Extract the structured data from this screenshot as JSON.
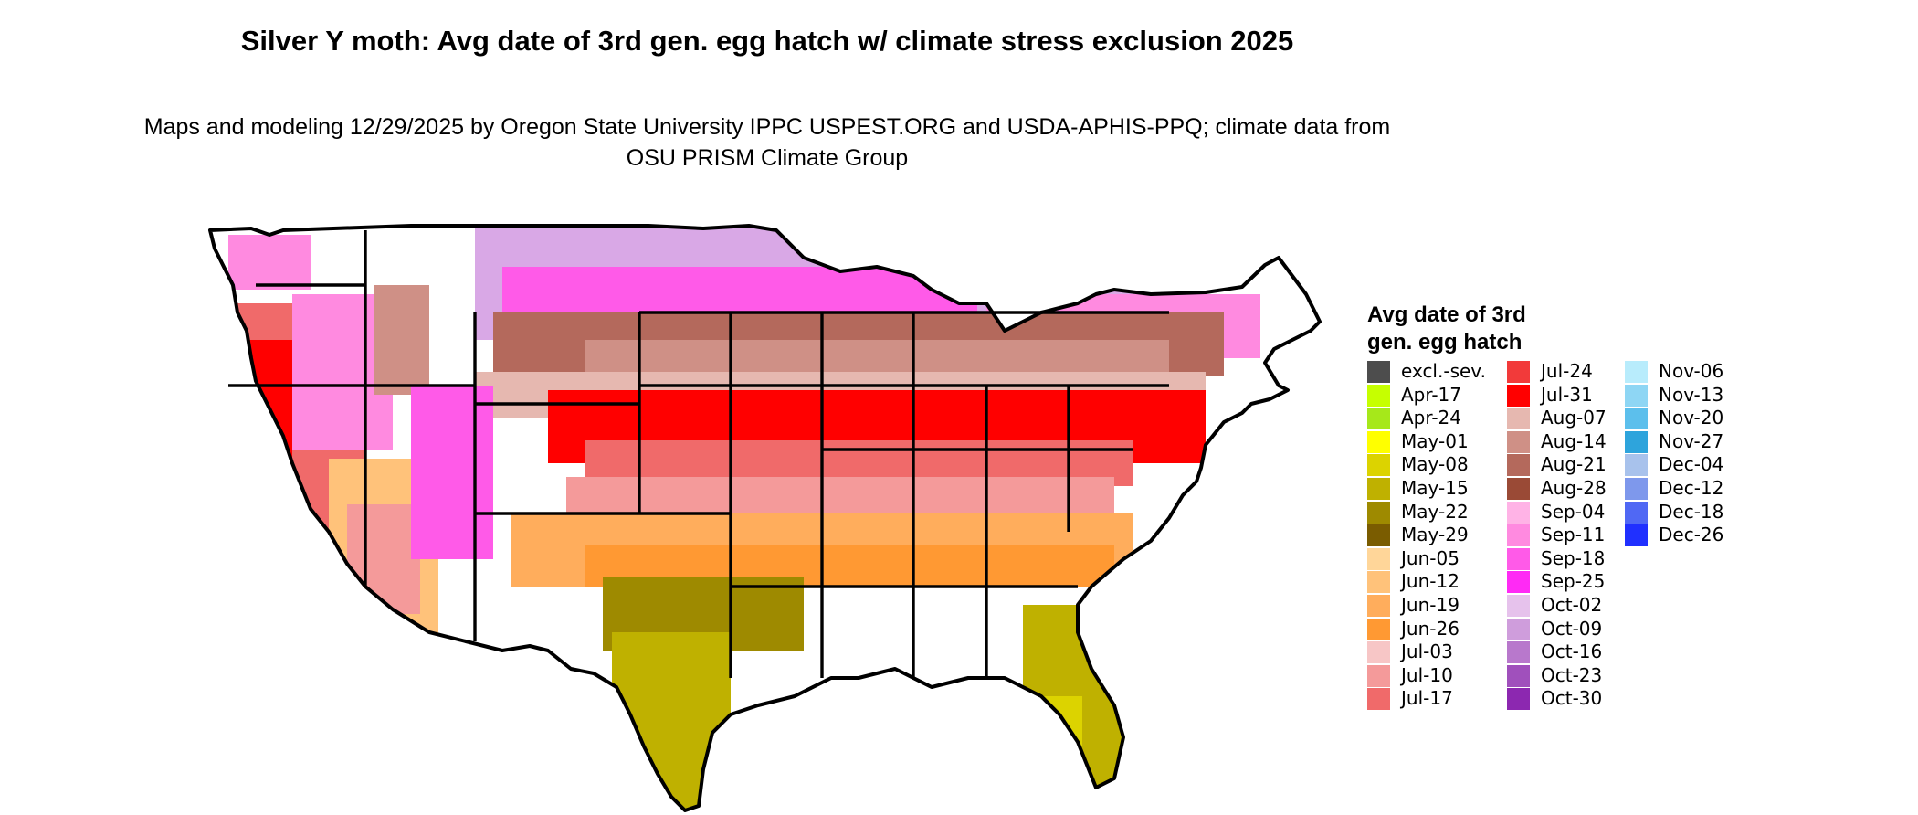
{
  "title": "Silver Y moth: Avg date of 3rd gen. egg hatch w/ climate stress exclusion 2025",
  "subtitle": "Maps and modeling 12/29/2025 by Oregon State University IPPC USPEST.ORG and USDA-APHIS-PPQ; climate data from OSU PRISM Climate Group",
  "legend": {
    "title": "Avg date of 3rd gen. egg hatch",
    "columns": [
      [
        {
          "label": "excl.-sev.",
          "color": "#4d4d4d"
        },
        {
          "label": "Apr-17",
          "color": "#c6ff00"
        },
        {
          "label": "Apr-24",
          "color": "#a6e81a"
        },
        {
          "label": "May-01",
          "color": "#ffff00"
        },
        {
          "label": "May-08",
          "color": "#dcd300"
        },
        {
          "label": "May-15",
          "color": "#bfb100"
        },
        {
          "label": "May-22",
          "color": "#9e8a00"
        },
        {
          "label": "May-29",
          "color": "#7a5c00"
        },
        {
          "label": "Jun-05",
          "color": "#ffd699"
        },
        {
          "label": "Jun-12",
          "color": "#ffc27a"
        },
        {
          "label": "Jun-19",
          "color": "#ffad5c"
        },
        {
          "label": "Jun-26",
          "color": "#ff9933"
        },
        {
          "label": "Jul-03",
          "color": "#f7c6c6"
        },
        {
          "label": "Jul-10",
          "color": "#f49a9a"
        },
        {
          "label": "Jul-17",
          "color": "#f06a6a"
        }
      ],
      [
        {
          "label": "Jul-24",
          "color": "#f23a3a"
        },
        {
          "label": "Jul-31",
          "color": "#ff0000"
        },
        {
          "label": "Aug-07",
          "color": "#e6b8b0"
        },
        {
          "label": "Aug-14",
          "color": "#cf9086"
        },
        {
          "label": "Aug-21",
          "color": "#b4695c"
        },
        {
          "label": "Aug-28",
          "color": "#9a4a36"
        },
        {
          "label": "Sep-04",
          "color": "#ffb3e6"
        },
        {
          "label": "Sep-11",
          "color": "#ff8ae0"
        },
        {
          "label": "Sep-18",
          "color": "#ff5ae8"
        },
        {
          "label": "Sep-25",
          "color": "#ff2af5"
        },
        {
          "label": "Oct-02",
          "color": "#e6c2ec"
        },
        {
          "label": "Oct-09",
          "color": "#cf9ddc"
        },
        {
          "label": "Oct-16",
          "color": "#b878cc"
        },
        {
          "label": "Oct-23",
          "color": "#a050bc"
        },
        {
          "label": "Oct-30",
          "color": "#8c28b0"
        }
      ],
      [
        {
          "label": "Nov-06",
          "color": "#b8ecfc"
        },
        {
          "label": "Nov-13",
          "color": "#8ed6f4"
        },
        {
          "label": "Nov-20",
          "color": "#5cbfec"
        },
        {
          "label": "Nov-27",
          "color": "#2ea4dc"
        },
        {
          "label": "Dec-04",
          "color": "#a8c2ec"
        },
        {
          "label": "Dec-12",
          "color": "#7e98ec"
        },
        {
          "label": "Dec-18",
          "color": "#5068f4"
        },
        {
          "label": "Dec-26",
          "color": "#2030ff"
        }
      ]
    ]
  }
}
